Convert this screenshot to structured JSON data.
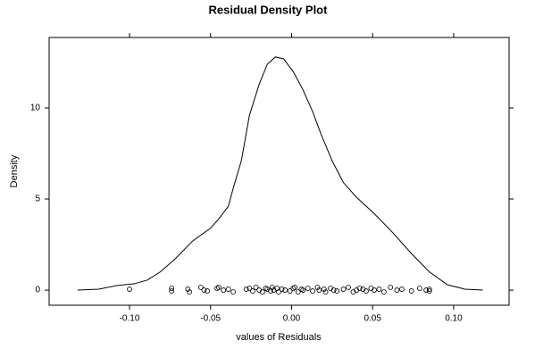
{
  "chart_data": {
    "type": "density",
    "title": "Residual Density Plot",
    "x_label": "values of Residuals",
    "y_label": "Density",
    "color": "#000000",
    "xlim": [
      -0.1496,
      0.1342
    ],
    "ylim": [
      -0.83,
      13.87
    ],
    "xticks": [
      {
        "value": -0.1,
        "label": "-0.10"
      },
      {
        "value": -0.05,
        "label": "-0.05"
      },
      {
        "value": 0,
        "label": "0.00"
      },
      {
        "value": 0.05,
        "label": "0.05"
      },
      {
        "value": 0.1,
        "label": "0.10"
      }
    ],
    "yticks": [
      0,
      5,
      10
    ],
    "density": {
      "x": [
        -0.132,
        -0.119,
        -0.108,
        -0.097,
        -0.089,
        -0.081,
        -0.072,
        -0.061,
        -0.05,
        -0.045,
        -0.039,
        -0.036,
        -0.031,
        -0.026,
        -0.02,
        -0.015,
        -0.01,
        -0.005,
        0.001,
        0.007,
        0.013,
        0.018,
        0.025,
        0.032,
        0.04,
        0.051,
        0.063,
        0.074,
        0.085,
        0.096,
        0.107,
        0.118
      ],
      "y": [
        0,
        0.05,
        0.25,
        0.35,
        0.55,
        1.0,
        1.7,
        2.7,
        3.4,
        3.9,
        4.6,
        5.6,
        7.1,
        9.6,
        11.3,
        12.4,
        12.8,
        12.7,
        12.0,
        11.0,
        9.8,
        8.6,
        7.1,
        5.9,
        5.1,
        4.2,
        3.1,
        2.0,
        1.0,
        0.3,
        0.05,
        0
      ]
    },
    "rug": {
      "x": [
        -0.1,
        -0.074,
        -0.074,
        -0.064,
        -0.063,
        -0.056,
        -0.054,
        -0.052,
        -0.046,
        -0.045,
        -0.042,
        -0.039,
        -0.036,
        -0.028,
        -0.026,
        -0.024,
        -0.022,
        -0.02,
        -0.018,
        -0.016,
        -0.015,
        -0.013,
        -0.012,
        -0.011,
        -0.009,
        -0.008,
        -0.006,
        -0.004,
        -0.001,
        0.001,
        0.002,
        0.004,
        0.006,
        0.007,
        0.01,
        0.013,
        0.016,
        0.017,
        0.02,
        0.021,
        0.024,
        0.026,
        0.028,
        0.032,
        0.035,
        0.038,
        0.04,
        0.042,
        0.044,
        0.046,
        0.049,
        0.051,
        0.054,
        0.057,
        0.061,
        0.065,
        0.068,
        0.074,
        0.079,
        0.083,
        0.085,
        0.085
      ],
      "y": [
        0.05,
        0.1,
        -0.05,
        0.05,
        -0.1,
        0.15,
        0,
        -0.05,
        0.1,
        0.15,
        0,
        0.05,
        -0.1,
        0.05,
        0.1,
        -0.05,
        0.15,
        0,
        -0.1,
        0.1,
        0.05,
        -0.05,
        0.15,
        0,
        0.1,
        -0.1,
        0.05,
        0,
        -0.05,
        0.1,
        0.15,
        -0.1,
        0.05,
        0,
        0.1,
        -0.05,
        0.15,
        0,
        0.05,
        -0.1,
        0.1,
        0,
        -0.05,
        0.05,
        0.15,
        -0.1,
        0,
        0.1,
        0.05,
        -0.05,
        0.1,
        0,
        0.05,
        -0.1,
        0.15,
        0,
        0.05,
        -0.05,
        0.1,
        0,
        0.05,
        -0.05
      ]
    }
  }
}
